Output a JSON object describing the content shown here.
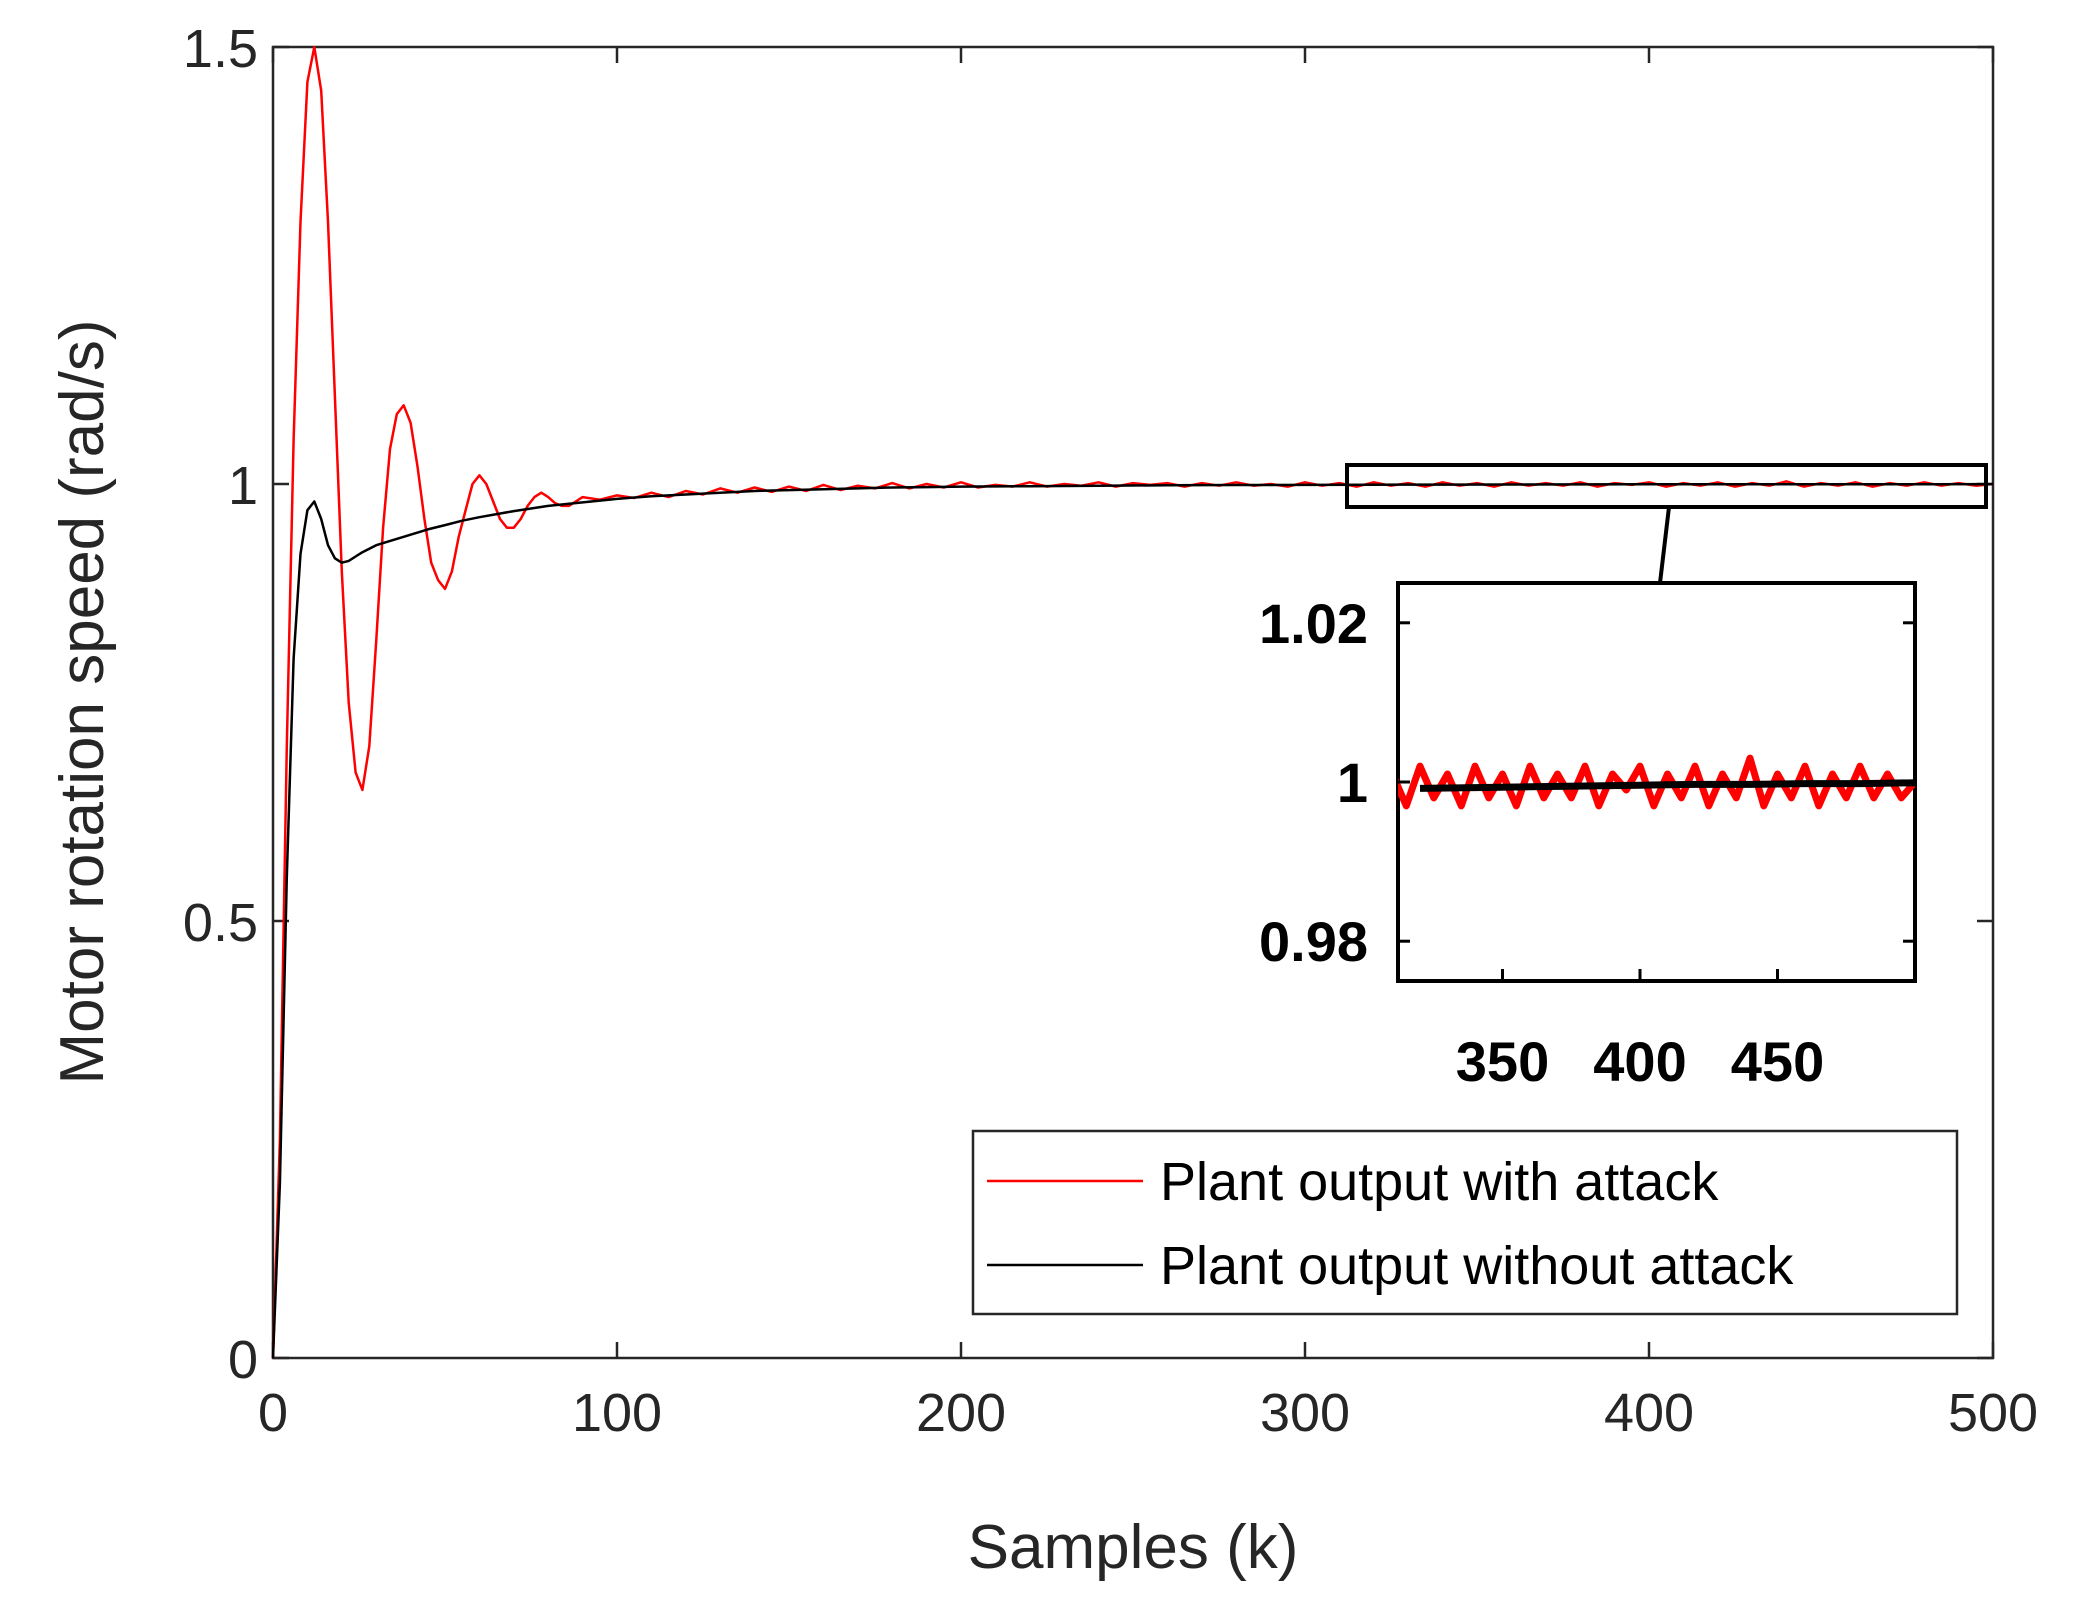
{
  "chart_data": {
    "type": "line",
    "title": "",
    "xlabel": "Samples (k)",
    "ylabel": "Motor rotation speed (rad/s)",
    "xlim": [
      0,
      500
    ],
    "ylim": [
      0,
      1.5
    ],
    "xticks": [
      0,
      100,
      200,
      300,
      400,
      500
    ],
    "xtick_labels": [
      "0",
      "100",
      "200",
      "300",
      "400",
      "500"
    ],
    "yticks": [
      0,
      0.5,
      1,
      1.5
    ],
    "ytick_labels": [
      "0",
      "0.5",
      "1",
      "1.5"
    ],
    "grid": false,
    "legend_position": "bottom-right",
    "series": [
      {
        "name": "Plant output with attack",
        "color": "#ff0000",
        "x": [
          0,
          2,
          4,
          6,
          8,
          10,
          12,
          14,
          16,
          18,
          20,
          22,
          24,
          26,
          28,
          30,
          32,
          34,
          36,
          38,
          40,
          42,
          44,
          46,
          48,
          50,
          52,
          54,
          56,
          58,
          60,
          62,
          64,
          66,
          68,
          70,
          72,
          74,
          76,
          78,
          80,
          82,
          84,
          86,
          88,
          90,
          95,
          100,
          105,
          110,
          115,
          120,
          125,
          130,
          135,
          140,
          145,
          150,
          155,
          160,
          165,
          170,
          175,
          180,
          185,
          190,
          195,
          200,
          205,
          210,
          215,
          220,
          225,
          230,
          235,
          240,
          245,
          250,
          255,
          260,
          265,
          270,
          275,
          280,
          285,
          290,
          295,
          300,
          305,
          310,
          315,
          320,
          325,
          330,
          335,
          340,
          345,
          350,
          355,
          360,
          365,
          370,
          375,
          380,
          385,
          390,
          395,
          400,
          405,
          410,
          415,
          420,
          425,
          430,
          435,
          440,
          445,
          450,
          455,
          460,
          465,
          470,
          475,
          480,
          485,
          490,
          495,
          500
        ],
        "values": [
          0,
          0.25,
          0.7,
          1.05,
          1.3,
          1.46,
          1.5,
          1.45,
          1.3,
          1.1,
          0.9,
          0.75,
          0.67,
          0.65,
          0.7,
          0.82,
          0.95,
          1.04,
          1.08,
          1.09,
          1.07,
          1.02,
          0.96,
          0.91,
          0.89,
          0.88,
          0.9,
          0.94,
          0.97,
          1.0,
          1.01,
          1.0,
          0.98,
          0.96,
          0.95,
          0.95,
          0.96,
          0.975,
          0.985,
          0.99,
          0.985,
          0.978,
          0.975,
          0.975,
          0.98,
          0.985,
          0.982,
          0.987,
          0.984,
          0.99,
          0.985,
          0.992,
          0.988,
          0.995,
          0.99,
          0.996,
          0.991,
          0.997,
          0.992,
          0.999,
          0.993,
          0.998,
          0.995,
          1.001,
          0.995,
          1.0,
          0.996,
          1.002,
          0.996,
          0.999,
          0.997,
          1.002,
          0.997,
          1.0,
          0.998,
          1.002,
          0.997,
          1.001,
          0.999,
          1.001,
          0.997,
          1.001,
          0.998,
          1.002,
          0.998,
          1.0,
          0.997,
          1.002,
          0.998,
          1.001,
          0.997,
          1.002,
          0.998,
          1.001,
          0.997,
          1.002,
          0.998,
          1.001,
          0.997,
          1.002,
          0.998,
          1.001,
          0.998,
          1.002,
          0.997,
          1.001,
          0.999,
          1.002,
          0.997,
          1.001,
          0.998,
          1.002,
          0.997,
          1.001,
          0.998,
          1.003,
          0.997,
          1.001,
          0.998,
          1.002,
          0.997,
          1.001,
          0.998,
          1.002,
          0.998,
          1.001,
          0.998,
          1.0
        ]
      },
      {
        "name": "Plant output without attack",
        "color": "#000000",
        "x": [
          0,
          2,
          4,
          6,
          8,
          10,
          12,
          14,
          16,
          18,
          20,
          22,
          24,
          26,
          28,
          30,
          35,
          40,
          45,
          50,
          55,
          60,
          70,
          80,
          90,
          100,
          110,
          120,
          130,
          140,
          150,
          160,
          170,
          180,
          190,
          200,
          220,
          240,
          260,
          280,
          300,
          320,
          340,
          360,
          380,
          400,
          420,
          440,
          460,
          480,
          500
        ],
        "values": [
          0,
          0.2,
          0.55,
          0.8,
          0.92,
          0.97,
          0.98,
          0.96,
          0.93,
          0.915,
          0.91,
          0.912,
          0.917,
          0.922,
          0.926,
          0.93,
          0.936,
          0.942,
          0.948,
          0.953,
          0.958,
          0.962,
          0.969,
          0.975,
          0.979,
          0.983,
          0.986,
          0.988,
          0.99,
          0.992,
          0.993,
          0.994,
          0.995,
          0.996,
          0.9965,
          0.997,
          0.9975,
          0.998,
          0.9985,
          0.9988,
          0.999,
          0.9992,
          0.9993,
          0.9994,
          0.9995,
          0.9996,
          0.9997,
          0.9997,
          0.9998,
          0.9998,
          0.9999
        ]
      }
    ],
    "inset": {
      "xlim": [
        312,
        500
      ],
      "ylim": [
        0.975,
        1.025
      ],
      "xtick_labels": [
        "350",
        "400",
        "450"
      ],
      "ytick_labels": [
        "0.98",
        "1",
        "1.02"
      ]
    }
  }
}
